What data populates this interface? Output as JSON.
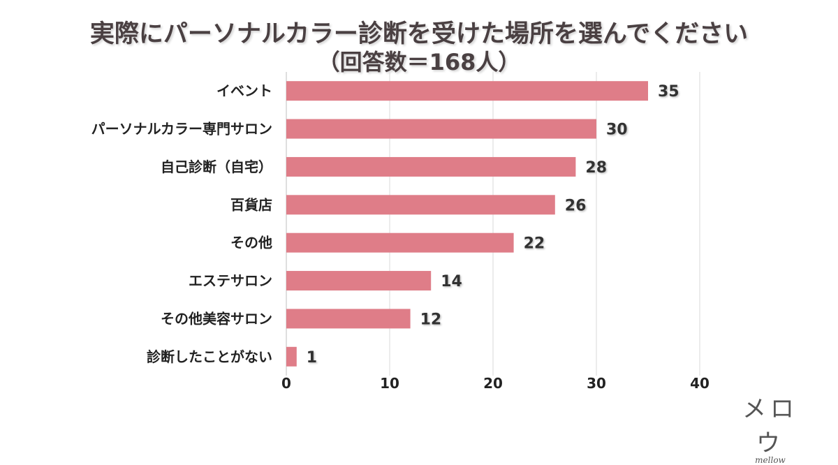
{
  "title_line1": "実際にパーソナルカラー診断を受けた場所を選んでください",
  "title_line2": "（回答数＝168人）",
  "logo": {
    "jp": "メロウ",
    "en": "mellow"
  },
  "colors": {
    "bar": "#df7d88",
    "grid": "#d9d9d9",
    "axis": "#bfbfbf"
  },
  "chart_data": {
    "type": "bar",
    "orientation": "horizontal",
    "title": "実際にパーソナルカラー診断を受けた場所を選んでください",
    "subtitle": "（回答数＝168人）",
    "categories": [
      "イベント",
      "パーソナルカラー専門サロン",
      "自己診断（自宅）",
      "百貨店",
      "その他",
      "エステサロン",
      "その他美容サロン",
      "診断したことがない"
    ],
    "values": [
      35,
      30,
      28,
      26,
      22,
      14,
      12,
      1
    ],
    "xlim": [
      0,
      40
    ],
    "xticks": [
      0,
      10,
      20,
      30,
      40
    ],
    "grid": true,
    "legend": "none"
  }
}
